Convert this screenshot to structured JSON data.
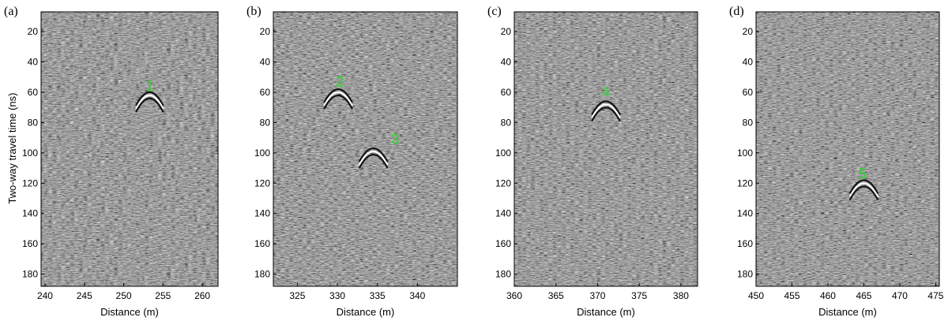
{
  "figure": {
    "ylabel": "Two-way travel time (ns)",
    "xlabel": "Distance (m)"
  },
  "colors": {
    "annotation": "#22dd22",
    "background_gray": "#808080"
  },
  "chart_data": [
    {
      "type": "heatmap",
      "panel": "(a)",
      "title": "",
      "xlabel": "Distance (m)",
      "ylabel": "Two-way travel time (ns)",
      "xlim": [
        239.5,
        262
      ],
      "ylim": [
        7,
        188
      ],
      "xticks": [
        240,
        245,
        250,
        255,
        260
      ],
      "yticks": [
        20,
        40,
        60,
        80,
        100,
        120,
        140,
        160,
        180
      ],
      "annotations": [
        {
          "label": "1",
          "x": 253.3,
          "y": 56
        }
      ],
      "hyperbolas": [
        {
          "x": 253.3,
          "y": 60
        }
      ]
    },
    {
      "type": "heatmap",
      "panel": "(b)",
      "title": "",
      "xlabel": "Distance (m)",
      "ylabel": "",
      "xlim": [
        322,
        345
      ],
      "ylim": [
        7,
        188
      ],
      "xticks": [
        325,
        330,
        335,
        340
      ],
      "yticks": [
        20,
        40,
        60,
        80,
        100,
        120,
        140,
        160,
        180
      ],
      "annotations": [
        {
          "label": "2",
          "x": 330.3,
          "y": 53
        },
        {
          "label": "3",
          "x": 337.2,
          "y": 91
        }
      ],
      "hyperbolas": [
        {
          "x": 330.1,
          "y": 58
        },
        {
          "x": 334.5,
          "y": 97
        }
      ]
    },
    {
      "type": "heatmap",
      "panel": "(c)",
      "title": "",
      "xlabel": "Distance (m)",
      "ylabel": "",
      "xlim": [
        360,
        382
      ],
      "ylim": [
        7,
        188
      ],
      "xticks": [
        360,
        365,
        370,
        375,
        380
      ],
      "yticks": [
        20,
        40,
        60,
        80,
        100,
        120,
        140,
        160,
        180
      ],
      "annotations": [
        {
          "label": "4",
          "x": 371.0,
          "y": 60
        }
      ],
      "hyperbolas": [
        {
          "x": 371.0,
          "y": 66
        }
      ]
    },
    {
      "type": "heatmap",
      "panel": "(d)",
      "title": "",
      "xlabel": "Distance (m)",
      "ylabel": "",
      "xlim": [
        450,
        475.5
      ],
      "ylim": [
        7,
        188
      ],
      "xticks": [
        450,
        455,
        460,
        465,
        470,
        475
      ],
      "yticks": [
        20,
        40,
        60,
        80,
        100,
        120,
        140,
        160,
        180
      ],
      "annotations": [
        {
          "label": "5",
          "x": 464.8,
          "y": 114
        }
      ],
      "hyperbolas": [
        {
          "x": 465.0,
          "y": 118
        }
      ]
    }
  ]
}
